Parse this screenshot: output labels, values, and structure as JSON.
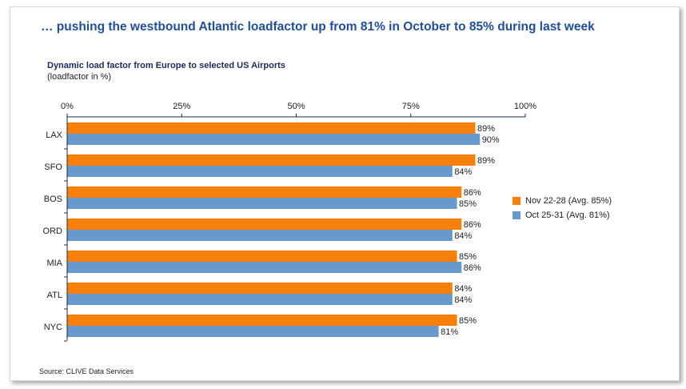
{
  "page": {
    "headline": "… pushing the westbound Atlantic loadfactor up from 81% in October to 85% during last week",
    "source": "Source: CLIVE Data Services"
  },
  "chart_data": {
    "type": "bar",
    "orientation": "horizontal",
    "title": "Dynamic load factor from Europe to selected US Airports",
    "subtitle": "(loadfactor in %)",
    "categories": [
      "LAX",
      "SFO",
      "BOS",
      "ORD",
      "MIA",
      "ATL",
      "NYC"
    ],
    "series": [
      {
        "name": "Nov 22-28 (Avg. 85%)",
        "color": "#ff8000",
        "values": [
          89,
          89,
          86,
          86,
          85,
          84,
          85
        ]
      },
      {
        "name": "Oct 25-31 (Avg. 81%)",
        "color": "#6699cc",
        "values": [
          90,
          84,
          85,
          84,
          86,
          84,
          81
        ]
      }
    ],
    "xlim": [
      0,
      100
    ],
    "xticks": [
      0,
      25,
      50,
      75,
      100
    ],
    "tick_suffix": "%",
    "value_suffix": "%",
    "legend_position": "right",
    "grid": false
  }
}
